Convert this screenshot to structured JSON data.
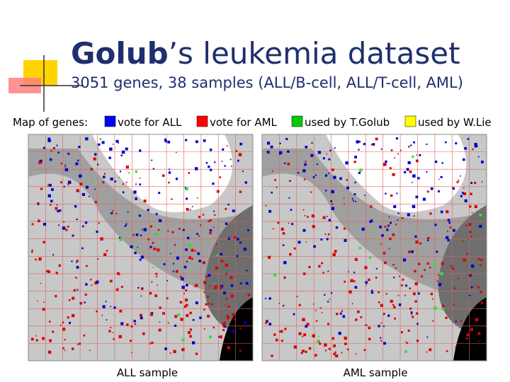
{
  "header": {
    "title_bold": "Golub",
    "title_rest": "’s leukemia dataset",
    "subtitle": "3051 genes, 38 samples (ALL/B-cell, ALL/T-cell, AML)"
  },
  "legend": {
    "label": "Map of genes:",
    "items": [
      {
        "color": "#0000ff",
        "text": "vote for ALL"
      },
      {
        "color": "#ff0000",
        "text": "vote for AML"
      },
      {
        "color": "#00cc00",
        "text": "used by T.Golub"
      },
      {
        "color": "#ffff00",
        "text": "used by W.Lie"
      }
    ]
  },
  "maps": [
    {
      "caption": "ALL sample"
    },
    {
      "caption": "AML sample"
    }
  ]
}
